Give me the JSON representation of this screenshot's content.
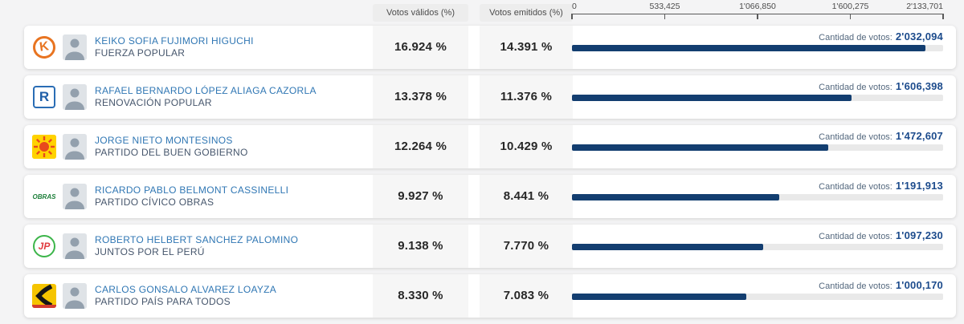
{
  "header": {
    "valid_label": "Votos válidos (%)",
    "emitted_label": "Votos emitidos (%)"
  },
  "axis": {
    "ticks": [
      "0",
      "533,425",
      "1'066,850",
      "1'600,275",
      "2'133,701"
    ],
    "max": 2133701
  },
  "colors": {
    "bar_fill": "#133e70",
    "bar_track": "#e9e9e9",
    "candidate_name_blue": "#3077b4",
    "votes_value_navy": "#1c4b8c",
    "fuerza_popular_orange": "#e87421",
    "renovacion_popular_blue": "#1f5fa8",
    "buen_gobierno_yellow": "#ffd200",
    "obras_green": "#1d7f3a",
    "jp_green": "#3cb54a",
    "jp_red": "#e03a3e",
    "pais_para_todos_yellow": "#f5c400"
  },
  "rows": [
    {
      "name": "KEIKO SOFIA FUJIMORI HIGUCHI",
      "party": "FUERZA POPULAR",
      "logo": "k-circle",
      "logo_icon": "fuerza-popular-k-logo",
      "valid_pct": "16.924 %",
      "emitted_pct": "14.391 %",
      "votes_caption": "Cantidad de votos:",
      "votes": "2'032,094",
      "votes_n": 2032094
    },
    {
      "name": "RAFAEL BERNARDO LÓPEZ ALIAGA CAZORLA",
      "party": "RENOVACIÓN POPULAR",
      "logo": "r-square",
      "logo_icon": "renovacion-popular-r-logo",
      "valid_pct": "13.378 %",
      "emitted_pct": "11.376 %",
      "votes_caption": "Cantidad de votos:",
      "votes": "1'606,398",
      "votes_n": 1606398
    },
    {
      "name": "JORGE NIETO MONTESINOS",
      "party": "PARTIDO DEL BUEN GOBIERNO",
      "logo": "sun",
      "logo_icon": "buen-gobierno-sun-logo",
      "valid_pct": "12.264 %",
      "emitted_pct": "10.429 %",
      "votes_caption": "Cantidad de votos:",
      "votes": "1'472,607",
      "votes_n": 1472607
    },
    {
      "name": "RICARDO PABLO BELMONT CASSINELLI",
      "party": "PARTIDO CÍVICO OBRAS",
      "logo": "obras",
      "logo_icon": "obras-wordmark-logo",
      "logo_text": "OBRAS",
      "valid_pct": "9.927 %",
      "emitted_pct": "8.441 %",
      "votes_caption": "Cantidad de votos:",
      "votes": "1'191,913",
      "votes_n": 1191913
    },
    {
      "name": "ROBERTO HELBERT SANCHEZ PALOMINO",
      "party": "JUNTOS POR EL PERÚ",
      "logo": "jp-circle",
      "logo_icon": "juntos-por-el-peru-jp-logo",
      "valid_pct": "9.138 %",
      "emitted_pct": "7.770 %",
      "votes_caption": "Cantidad de votos:",
      "votes": "1'097,230",
      "votes_n": 1097230
    },
    {
      "name": "CARLOS GONSALO ALVAREZ LOAYZA",
      "party": "PARTIDO PAÍS PARA TODOS",
      "logo": "road",
      "logo_icon": "pais-para-todos-road-logo",
      "valid_pct": "8.330 %",
      "emitted_pct": "7.083 %",
      "votes_caption": "Cantidad de votos:",
      "votes": "1'000,170",
      "votes_n": 1000170
    }
  ],
  "chart_data": {
    "type": "bar",
    "orientation": "horizontal",
    "title": "",
    "xlabel": "Cantidad de votos",
    "ylabel": "",
    "xlim": [
      0,
      2133701
    ],
    "x_ticks": [
      "0",
      "533,425",
      "1'066,850",
      "1'600,275",
      "2'133,701"
    ],
    "grid": false,
    "legend_position": "none",
    "categories": [
      "KEIKO SOFIA FUJIMORI HIGUCHI (FUERZA POPULAR)",
      "RAFAEL BERNARDO LÓPEZ ALIAGA CAZORLA (RENOVACIÓN POPULAR)",
      "JORGE NIETO MONTESINOS (PARTIDO DEL BUEN GOBIERNO)",
      "RICARDO PABLO BELMONT CASSINELLI (PARTIDO CÍVICO OBRAS)",
      "ROBERTO HELBERT SANCHEZ PALOMINO (JUNTOS POR EL PERÚ)",
      "CARLOS GONSALO ALVAREZ LOAYZA (PARTIDO PAÍS PARA TODOS)"
    ],
    "series": [
      {
        "name": "Votos válidos (%)",
        "values": [
          16.924,
          13.378,
          12.264,
          9.927,
          9.138,
          8.33
        ]
      },
      {
        "name": "Votos emitidos (%)",
        "values": [
          14.391,
          11.376,
          10.429,
          8.441,
          7.77,
          7.083
        ]
      },
      {
        "name": "Cantidad de votos",
        "values": [
          2032094,
          1606398,
          1472607,
          1191913,
          1097230,
          1000170
        ]
      }
    ]
  }
}
